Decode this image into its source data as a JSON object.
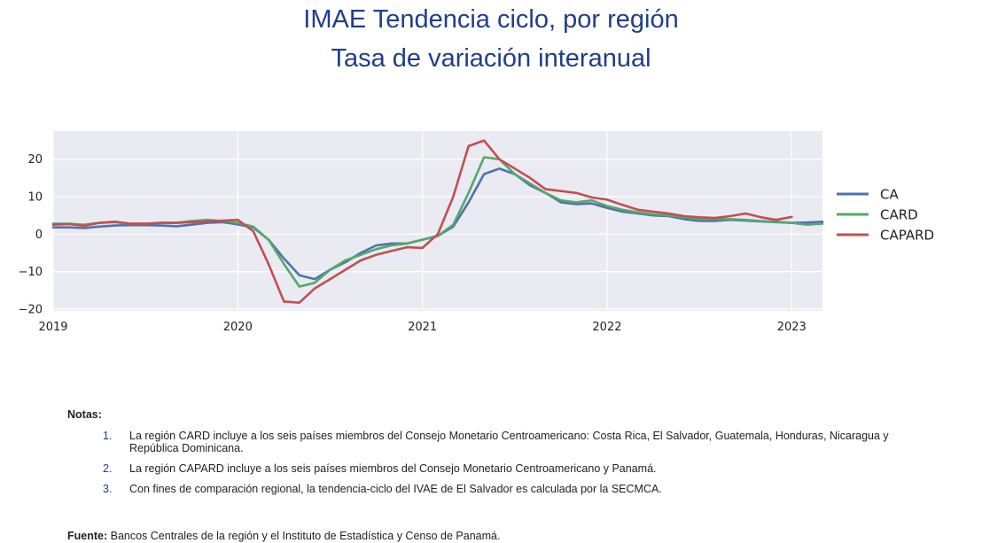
{
  "title": "IMAE Tendencia ciclo, por región",
  "subtitle": "Tasa de variación interanual",
  "chart_data": {
    "type": "line",
    "title": "IMAE Tendencia ciclo, por región",
    "subtitle": "Tasa de variación interanual",
    "xlabel": "",
    "ylabel": "",
    "x_ticks": [
      "2019",
      "2020",
      "2021",
      "2022",
      "2023"
    ],
    "y_ticks": [
      20,
      10,
      0,
      -10,
      -20
    ],
    "y_tick_labels": [
      "20",
      "10",
      "0",
      "−10",
      "−20"
    ],
    "xlim": [
      "2019-01",
      "2023-03"
    ],
    "ylim": [
      -20.5,
      27.5
    ],
    "grid": true,
    "legend_position": "right",
    "colors": {
      "CA": "#4c72b0",
      "CARD": "#55a868",
      "CAPARD": "#c44e52",
      "plot_bg": "#eaeaf2",
      "grid": "#ffffff"
    },
    "series": [
      {
        "name": "CA",
        "start": "2019-01",
        "values": [
          1.8,
          1.8,
          1.6,
          2.0,
          2.3,
          2.4,
          2.4,
          2.3,
          2.1,
          2.5,
          3.0,
          3.2,
          2.6,
          1.8,
          -1.5,
          -6.5,
          -11.0,
          -12.0,
          -9.5,
          -7.5,
          -5.0,
          -3.0,
          -2.5,
          -2.5,
          -1.5,
          -0.5,
          2.0,
          8.5,
          16.0,
          17.5,
          16.0,
          13.0,
          11.0,
          8.5,
          8.0,
          8.2,
          7.0,
          6.0,
          5.5,
          5.0,
          4.8,
          4.0,
          3.5,
          3.5,
          3.8,
          3.6,
          3.4,
          3.2,
          3.0,
          3.1,
          3.3
        ]
      },
      {
        "name": "CARD",
        "start": "2019-01",
        "values": [
          2.8,
          2.8,
          2.5,
          3.0,
          3.2,
          2.8,
          2.8,
          3.0,
          3.0,
          3.5,
          3.8,
          3.5,
          3.0,
          2.0,
          -1.5,
          -8.0,
          -14.0,
          -13.0,
          -9.5,
          -7.0,
          -5.5,
          -4.0,
          -3.0,
          -2.5,
          -1.5,
          -0.5,
          2.5,
          11.0,
          20.5,
          20.0,
          16.0,
          13.5,
          11.0,
          9.0,
          8.5,
          9.0,
          7.5,
          6.5,
          5.8,
          5.3,
          5.0,
          4.5,
          4.0,
          4.0,
          4.0,
          3.8,
          3.5,
          3.3,
          3.0,
          2.5,
          2.8
        ]
      },
      {
        "name": "CAPARD",
        "start": "2019-01",
        "values": [
          2.5,
          2.7,
          2.2,
          3.0,
          3.3,
          2.8,
          2.8,
          3.0,
          3.0,
          3.2,
          3.4,
          3.6,
          3.8,
          0.8,
          -8.0,
          -18.0,
          -18.3,
          -14.5,
          -12.0,
          -9.5,
          -7.0,
          -5.5,
          -4.5,
          -3.5,
          -3.7,
          0.0,
          10.0,
          23.5,
          25.0,
          20.0,
          17.5,
          15.0,
          12.0,
          11.5,
          11.0,
          9.8,
          9.2,
          7.8,
          6.5,
          6.0,
          5.5,
          4.8,
          4.5,
          4.3,
          4.8,
          5.5,
          4.5,
          3.8,
          4.6
        ]
      }
    ]
  },
  "legend": [
    {
      "label": "CA",
      "color": "#4c72b0"
    },
    {
      "label": "CARD",
      "color": "#55a868"
    },
    {
      "label": "CAPARD",
      "color": "#c44e52"
    }
  ],
  "notes": {
    "label": "Notas:",
    "items": [
      {
        "num": "1.",
        "text": "La región CARD incluye a los seis países miembros del Consejo Monetario Centroamericano: Costa Rica, El Salvador, Guatemala, Honduras, Nicaragua y República Dominicana."
      },
      {
        "num": "2.",
        "text": "La región CAPARD incluye a los seis países miembros del Consejo Monetario Centroamericano y Panamá."
      },
      {
        "num": "3.",
        "text": "Con fines de comparación regional, la tendencia-ciclo del IVAE de El Salvador es calculada por la SECMCA."
      }
    ]
  },
  "source": {
    "label": "Fuente:",
    "text": " Bancos Centrales de la región y el Instituto de Estadística y Censo de Panamá."
  }
}
